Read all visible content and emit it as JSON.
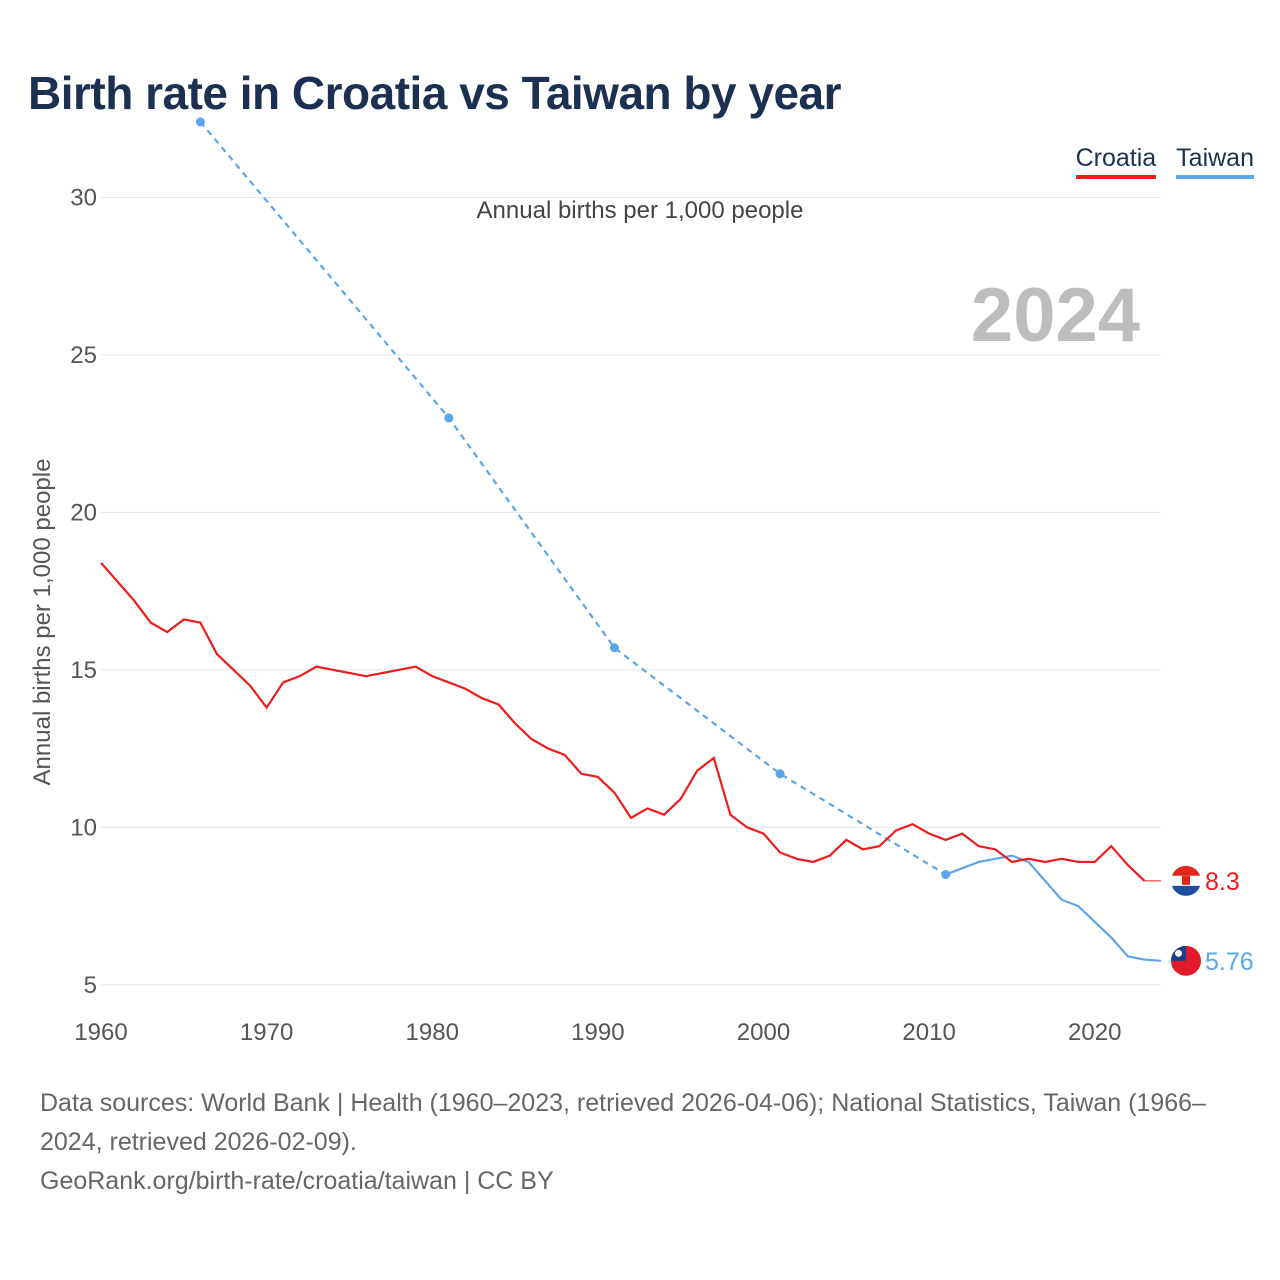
{
  "title": "Birth rate in Croatia vs Taiwan by year",
  "legend": {
    "croatia": "Croatia",
    "taiwan": "Taiwan"
  },
  "subtitle": "Annual births per 1,000 people",
  "year_watermark": "2024",
  "footer": {
    "sources": "Data sources: World Bank | Health (1960–2023, retrieved 2026-04-06); National Statistics, Taiwan (1966–2024, retrieved 2026-02-09).",
    "credit": "GeoRank.org/birth-rate/croatia/taiwan | CC BY"
  },
  "colors": {
    "croatia": "#ef1c1c",
    "taiwan": "#5ba6e8",
    "grid": "#e6e6e6"
  },
  "chart_data": {
    "type": "line",
    "title": "Birth rate in Croatia vs Taiwan by year",
    "ylabel": "Annual births per 1,000 people",
    "xlabel": "",
    "xlim": [
      1960,
      2024
    ],
    "ylim": [
      3.5,
      33
    ],
    "x_ticks": [
      1960,
      1970,
      1980,
      1990,
      2000,
      2010,
      2020
    ],
    "y_ticks": [
      5,
      10,
      15,
      20,
      25,
      30
    ],
    "grid": true,
    "legend_position": "top-right",
    "series": [
      {
        "name": "Croatia",
        "color": "#ef1c1c",
        "end_label": "8.3",
        "x": [
          1960,
          1961,
          1962,
          1963,
          1964,
          1965,
          1966,
          1967,
          1968,
          1969,
          1970,
          1971,
          1972,
          1973,
          1974,
          1975,
          1976,
          1977,
          1978,
          1979,
          1980,
          1981,
          1982,
          1983,
          1984,
          1985,
          1986,
          1987,
          1988,
          1989,
          1990,
          1991,
          1992,
          1993,
          1994,
          1995,
          1996,
          1997,
          1998,
          1999,
          2000,
          2001,
          2002,
          2003,
          2004,
          2005,
          2006,
          2007,
          2008,
          2009,
          2010,
          2011,
          2012,
          2013,
          2014,
          2015,
          2016,
          2017,
          2018,
          2019,
          2020,
          2021,
          2022,
          2023
        ],
        "values": [
          18.4,
          17.8,
          17.2,
          16.5,
          16.2,
          16.6,
          16.5,
          15.5,
          15.0,
          14.5,
          13.8,
          14.6,
          14.8,
          15.1,
          15.0,
          14.9,
          14.8,
          14.9,
          15.0,
          15.1,
          14.8,
          14.6,
          14.4,
          14.1,
          13.9,
          13.3,
          12.8,
          12.5,
          12.3,
          11.7,
          11.6,
          11.1,
          10.3,
          10.6,
          10.4,
          10.9,
          11.8,
          12.2,
          10.4,
          10.0,
          9.8,
          9.2,
          9.0,
          8.9,
          9.1,
          9.6,
          9.3,
          9.4,
          9.9,
          10.1,
          9.8,
          9.6,
          9.8,
          9.4,
          9.3,
          8.9,
          9.0,
          8.9,
          9.0,
          8.9,
          8.9,
          9.4,
          8.8,
          8.3
        ]
      },
      {
        "name": "Taiwan",
        "color": "#5ba6e8",
        "end_label": "5.76",
        "sparse_x": [
          1966,
          1981,
          1991,
          2001,
          2011
        ],
        "sparse_values": [
          32.4,
          23.0,
          15.7,
          11.7,
          8.5
        ],
        "x": [
          2011,
          2012,
          2013,
          2014,
          2015,
          2016,
          2017,
          2018,
          2019,
          2020,
          2021,
          2022,
          2023,
          2024
        ],
        "values": [
          8.5,
          8.7,
          8.9,
          9.0,
          9.1,
          8.9,
          8.3,
          7.7,
          7.5,
          7.0,
          6.5,
          5.9,
          5.8,
          5.76
        ]
      }
    ]
  }
}
